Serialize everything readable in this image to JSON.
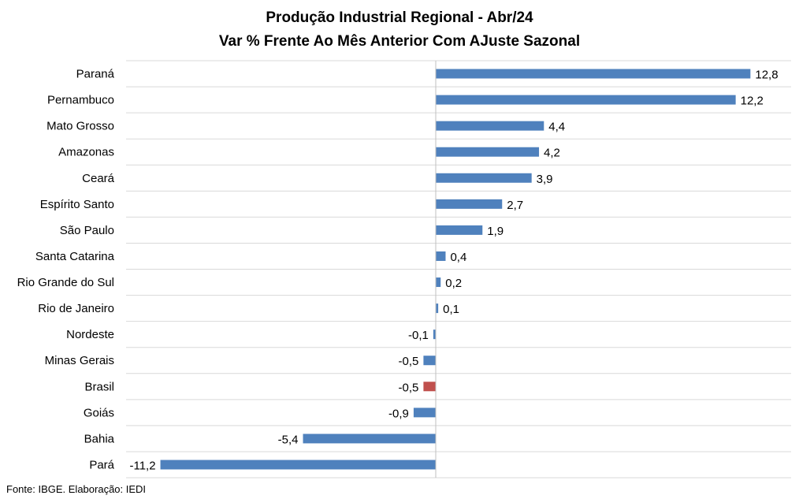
{
  "chart_data": {
    "type": "bar",
    "orientation": "horizontal",
    "title": "Produção Industrial Regional - Abr/24",
    "subtitle": "Var % Frente Ao Mês Anterior Com AJuste Sazonal",
    "categories": [
      "Paraná",
      "Pernambuco",
      "Mato Grosso",
      "Amazonas",
      "Ceará",
      "Espírito Santo",
      "São Paulo",
      "Santa Catarina",
      "Rio Grande do Sul",
      "Rio de Janeiro",
      "Nordeste",
      "Minas Gerais",
      "Brasil",
      "Goiás",
      "Bahia",
      "Pará"
    ],
    "values": [
      12.8,
      12.2,
      4.4,
      4.2,
      3.9,
      2.7,
      1.9,
      0.4,
      0.2,
      0.1,
      -0.1,
      -0.5,
      -0.5,
      -0.9,
      -5.4,
      -11.2
    ],
    "value_labels": [
      "12,8",
      "12,2",
      "4,4",
      "4,2",
      "3,9",
      "2,7",
      "1,9",
      "0,4",
      "0,2",
      "0,1",
      "-0,1",
      "-0,5",
      "-0,5",
      "-0,9",
      "-5,4",
      "-11,2"
    ],
    "highlight_category": "Brasil",
    "colors": {
      "bar": "#4F81BD",
      "highlight": "#C0504D",
      "grid": "#D9D9D9"
    },
    "xlim": [
      -11.5,
      14.5
    ],
    "grid": true,
    "legend": "none"
  },
  "source": "Fonte: IBGE. Elaboração: IEDI"
}
